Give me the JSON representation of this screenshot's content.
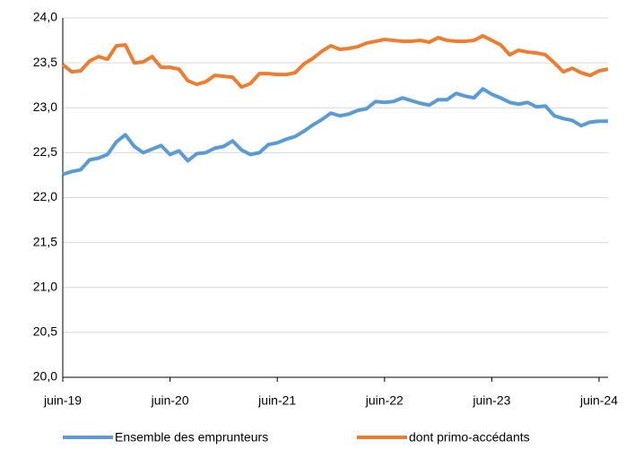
{
  "chart_data": {
    "type": "line",
    "categories": [
      "juin-19",
      null,
      null,
      null,
      null,
      null,
      null,
      null,
      null,
      null,
      null,
      null,
      "juin-20",
      null,
      null,
      null,
      null,
      null,
      null,
      null,
      null,
      null,
      null,
      null,
      "juin-21",
      null,
      null,
      null,
      null,
      null,
      null,
      null,
      null,
      null,
      null,
      null,
      "juin-22",
      null,
      null,
      null,
      null,
      null,
      null,
      null,
      null,
      null,
      null,
      null,
      "juin-23",
      null,
      null,
      null,
      null,
      null,
      null,
      null,
      null,
      null,
      null,
      null,
      "juin-24",
      null
    ],
    "series": [
      {
        "name": "Ensemble des emprunteurs",
        "color": "#5b9bd5",
        "values": [
          22.26,
          22.29,
          22.31,
          22.42,
          22.44,
          22.48,
          22.62,
          22.7,
          22.57,
          22.5,
          22.54,
          22.58,
          22.48,
          22.52,
          22.41,
          22.49,
          22.5,
          22.55,
          22.57,
          22.63,
          22.53,
          22.48,
          22.5,
          22.59,
          22.61,
          22.65,
          22.68,
          22.74,
          22.81,
          22.87,
          22.94,
          22.91,
          22.93,
          22.97,
          22.99,
          23.07,
          23.06,
          23.07,
          23.11,
          23.08,
          23.05,
          23.03,
          23.09,
          23.09,
          23.16,
          23.13,
          23.11,
          23.21,
          23.15,
          23.11,
          23.06,
          23.04,
          23.06,
          23.01,
          23.02,
          22.91,
          22.88,
          22.86,
          22.8,
          22.84,
          22.85,
          22.85
        ]
      },
      {
        "name": "dont primo-accédants",
        "color": "#ed7d31",
        "values": [
          23.48,
          23.4,
          23.41,
          23.52,
          23.57,
          23.54,
          23.69,
          23.7,
          23.5,
          23.51,
          23.57,
          23.45,
          23.45,
          23.43,
          23.3,
          23.26,
          23.29,
          23.36,
          23.35,
          23.34,
          23.23,
          23.27,
          23.38,
          23.38,
          23.37,
          23.37,
          23.39,
          23.49,
          23.55,
          23.63,
          23.69,
          23.65,
          23.66,
          23.68,
          23.72,
          23.74,
          23.76,
          23.75,
          23.74,
          23.74,
          23.75,
          23.73,
          23.78,
          23.75,
          23.74,
          23.74,
          23.75,
          23.8,
          23.75,
          23.7,
          23.59,
          23.64,
          23.62,
          23.61,
          23.59,
          23.5,
          23.4,
          23.44,
          23.39,
          23.36,
          23.41,
          23.43
        ]
      }
    ],
    "ylim": [
      20,
      24
    ],
    "yticks": [
      {
        "value": 20,
        "label": "20,0"
      },
      {
        "value": 20.5,
        "label": "20,5"
      },
      {
        "value": 21,
        "label": "21,0"
      },
      {
        "value": 21.5,
        "label": "21,5"
      },
      {
        "value": 22,
        "label": "22,0"
      },
      {
        "value": 22.5,
        "label": "22,5"
      },
      {
        "value": 23,
        "label": "23,0"
      },
      {
        "value": 23.5,
        "label": "23,5"
      },
      {
        "value": 24,
        "label": "24,0"
      }
    ],
    "grid": true
  }
}
